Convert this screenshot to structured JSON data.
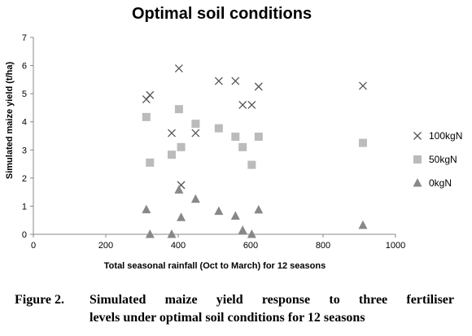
{
  "chart_data": {
    "type": "scatter",
    "title": "Optimal soil conditions",
    "xlabel": "Total seasonal rainfall (Oct to March) for 12 seasons",
    "ylabel": "Simulated maize yield (t/ha)",
    "xlim": [
      0,
      1000
    ],
    "ylim": [
      0,
      7
    ],
    "x_ticks": [
      "0",
      "200",
      "400",
      "600",
      "800",
      "1000"
    ],
    "y_ticks": [
      "0",
      "1",
      "2",
      "3",
      "4",
      "5",
      "6",
      "7"
    ],
    "grid": false,
    "legend_position": "right",
    "series": [
      {
        "name": "100kgN",
        "marker": "x",
        "color": "#555555",
        "x": [
          312,
          322,
          382,
          402,
          408,
          448,
          512,
          558,
          578,
          603,
          622,
          910
        ],
        "y": [
          4.8,
          4.95,
          3.6,
          5.9,
          1.75,
          3.6,
          5.45,
          5.45,
          4.6,
          4.6,
          5.25,
          5.28
        ]
      },
      {
        "name": "50kgN",
        "marker": "square",
        "color": "#bbbbbb",
        "x": [
          312,
          322,
          382,
          402,
          408,
          448,
          512,
          558,
          578,
          603,
          622,
          910
        ],
        "y": [
          4.17,
          2.55,
          2.83,
          4.45,
          3.1,
          3.93,
          3.77,
          3.47,
          3.1,
          2.47,
          3.47,
          3.25
        ]
      },
      {
        "name": "0kgN",
        "marker": "triangle",
        "color": "#888888",
        "x": [
          312,
          322,
          382,
          402,
          408,
          448,
          512,
          558,
          578,
          603,
          622,
          910
        ],
        "y": [
          0.88,
          0.0,
          0.0,
          1.58,
          0.6,
          1.25,
          0.82,
          0.65,
          0.14,
          0.0,
          0.87,
          0.32
        ]
      }
    ]
  },
  "caption": {
    "figure_label": "Figure 2.",
    "line1": "Simulated maize yield response to three fertiliser",
    "line2": "levels under optimal soil conditions for 12 seasons"
  }
}
